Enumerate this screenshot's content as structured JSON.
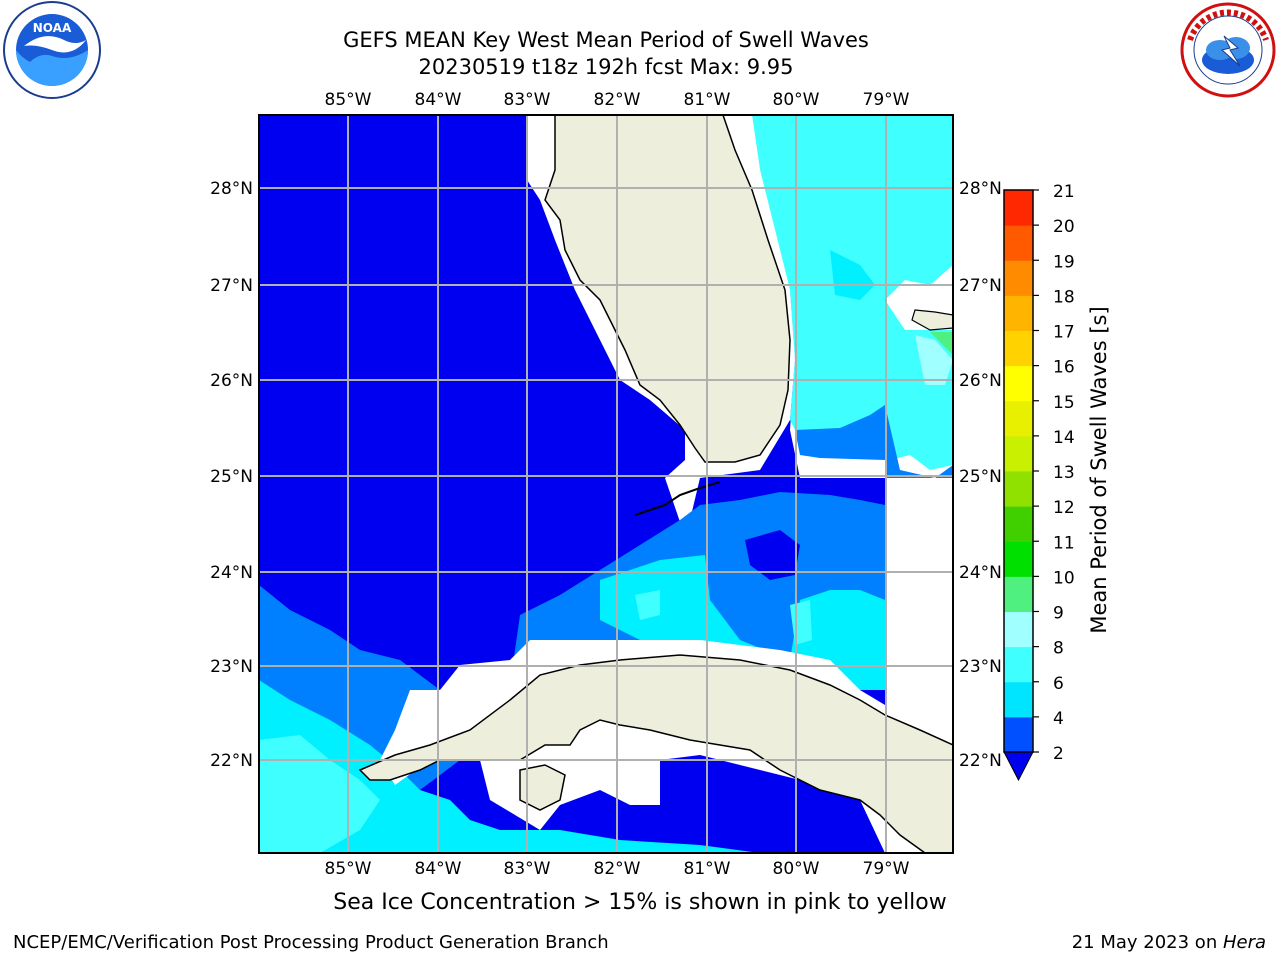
{
  "title_line1": "GEFS MEAN Key West Mean Period of Swell Waves",
  "title_line2": "20230519 t18z 192h fcst   Max: 9.95",
  "lon_labels": [
    "85°W",
    "84°W",
    "83°W",
    "82°W",
    "81°W",
    "80°W",
    "79°W"
  ],
  "lat_labels": [
    "28°N",
    "27°N",
    "26°N",
    "25°N",
    "24°N",
    "23°N",
    "22°N"
  ],
  "colorbar": {
    "label": "Mean Period of Swell Waves [s]",
    "ticks": [
      "2",
      "4",
      "6",
      "8",
      "9",
      "10",
      "11",
      "12",
      "13",
      "14",
      "15",
      "16",
      "17",
      "18",
      "19",
      "20",
      "21"
    ],
    "colors": [
      "#0050ff",
      "#00e5ff",
      "#40ffff",
      "#a0ffff",
      "#50f080",
      "#00e000",
      "#40d000",
      "#90e000",
      "#c8f000",
      "#e8f000",
      "#ffff00",
      "#ffd200",
      "#ffb400",
      "#ff8c00",
      "#ff5a00",
      "#ff2800"
    ],
    "under_color": "#0000f0"
  },
  "colors": {
    "land": "#eeeedd",
    "deep_blue": "#0000f0",
    "mid_blue": "#0080ff",
    "cyan": "#00f0ff",
    "light_cyan": "#40ffff",
    "grid": "#b0b0b0"
  },
  "icons": {
    "left_logo": "noaa-logo-icon",
    "right_logo": "nws-logo-icon"
  },
  "caption": "Sea Ice Concentration > 15% is shown in pink to yellow",
  "footer_left": "NCEP/EMC/Verification Post Processing Product Generation Branch",
  "footer_right_date": "21 May 2023 on ",
  "footer_right_host": "Hera"
}
